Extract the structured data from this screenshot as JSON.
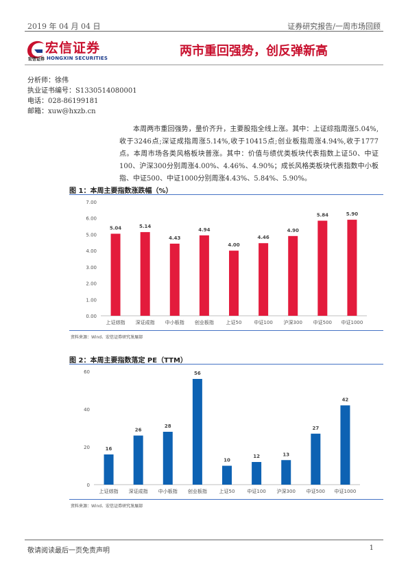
{
  "header": {
    "date": "2019 年 04 月 04 日",
    "category": "证券研究报告/一周市场回顾"
  },
  "logo": {
    "name_cn": "宏信证券",
    "sub_cn": "宏信证券",
    "sub_en": "HONGXIN SECURITIES",
    "colors": {
      "red": "#c8102e",
      "blue": "#1a3a8a"
    }
  },
  "report_title": "两市重回强势，创反弹新高",
  "author": {
    "analyst": "分析师：徐伟",
    "license": "执业证书编号：S1330514080001",
    "phone": "电话：028-86199181",
    "email": "邮箱：xuw@hxzb.cn"
  },
  "summary": "本周两市重回强势，量价齐升，主要股指全线上涨。其中：上证综指周涨5.04%,收于3246点;深证成指周涨5.14%,收于10415点;创业板指周涨4.94%,收于1777点。本周市场各类风格板块普涨。其中：价值与绩优类板块代表指数上证50、中证100、沪深300分别周涨4.00%、4.46%、4.90%；成长风格类板块代表指数中小板指、中证500、中证1000分别周涨4.43%、5.84%、5.90%。",
  "chart_data": [
    {
      "type": "bar",
      "title": "图 1：本周主要指数涨跌幅（%）",
      "categories": [
        "上证综指",
        "深证成指",
        "中小板指",
        "创业板指",
        "上证50",
        "中证100",
        "沪深300",
        "中证500",
        "中证1000"
      ],
      "values": [
        5.04,
        5.14,
        4.43,
        4.94,
        4.0,
        4.46,
        4.9,
        5.84,
        5.9
      ],
      "value_labels": [
        "5.04",
        "5.14",
        "4.43",
        "4.94",
        "4.00",
        "4.46",
        "4.90",
        "5.84",
        "5.90"
      ],
      "ylim": [
        0,
        7
      ],
      "yticks": [
        "0.00",
        "1.00",
        "2.00",
        "3.00",
        "4.00",
        "5.00",
        "6.00",
        "7.00"
      ],
      "xlabel": "",
      "ylabel": "",
      "color": "#e31b3c",
      "grid": false,
      "source": "资料来源：Wind、宏信证券研究发展部"
    },
    {
      "type": "bar",
      "title": "图 2：本周主要指数落定 PE（TTM）",
      "categories": [
        "上证综指",
        "深证成指",
        "中小板指",
        "创业板指",
        "上证50",
        "中证100",
        "沪深300",
        "中证500",
        "中证1000"
      ],
      "values": [
        16,
        26,
        28,
        56,
        10,
        12,
        13,
        27,
        42
      ],
      "value_labels": [
        "16",
        "26",
        "28",
        "56",
        "10",
        "12",
        "13",
        "27",
        "42"
      ],
      "ylim": [
        0,
        60
      ],
      "yticks": [
        "0",
        "20",
        "40",
        "60"
      ],
      "xlabel": "",
      "ylabel": "",
      "color": "#0d62b3",
      "grid": false,
      "source": "资料来源：Wind、宏信证券研究发展部"
    }
  ],
  "footer": {
    "disclaimer": "敬请阅读最后一页免责声明",
    "page": "1"
  }
}
